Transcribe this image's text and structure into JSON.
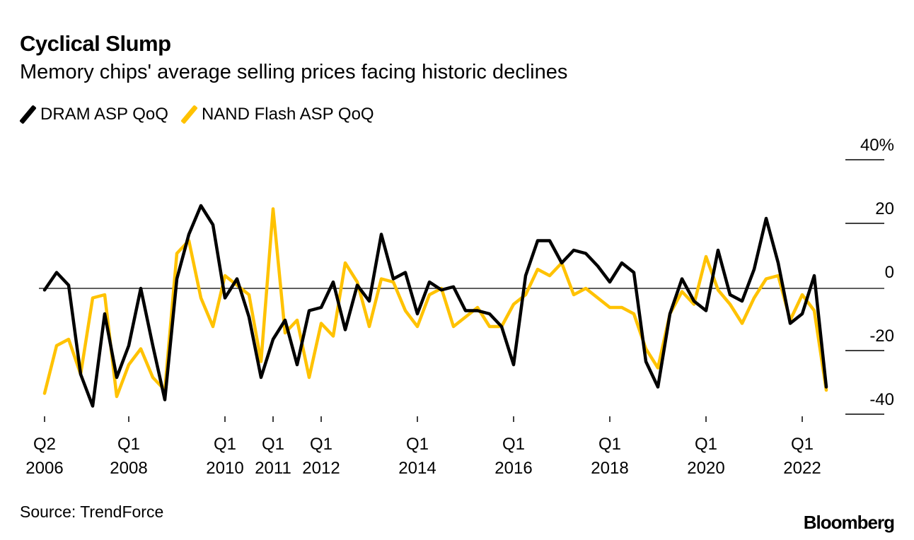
{
  "chart_data": {
    "type": "line",
    "title": "Cyclical Slump",
    "subtitle": "Memory chips' average selling prices facing historic declines",
    "xlabel": "",
    "ylabel": "",
    "ylim": [
      -40,
      40
    ],
    "yticks": [
      "40%",
      "20",
      "0",
      "-20",
      "-40"
    ],
    "ytick_values": [
      40,
      20,
      0,
      -20,
      -40
    ],
    "x_start": "Q2 2006",
    "x_end": "Q3 2022",
    "x_frequency": "quarterly",
    "xticks": [
      {
        "index": 0,
        "q": "Q2",
        "year": "2006"
      },
      {
        "index": 7,
        "q": "Q1",
        "year": "2008"
      },
      {
        "index": 15,
        "q": "Q1",
        "year": "2010"
      },
      {
        "index": 19,
        "q": "Q1",
        "year": "2011"
      },
      {
        "index": 23,
        "q": "Q1",
        "year": "2012"
      },
      {
        "index": 31,
        "q": "Q1",
        "year": "2014"
      },
      {
        "index": 39,
        "q": "Q1",
        "year": "2016"
      },
      {
        "index": 47,
        "q": "Q1",
        "year": "2018"
      },
      {
        "index": 55,
        "q": "Q1",
        "year": "2020"
      },
      {
        "index": 63,
        "q": "Q1",
        "year": "2022"
      }
    ],
    "legend_position": "top-left",
    "series": [
      {
        "name": "DRAM ASP QoQ",
        "color": "#000000",
        "values": [
          -0.5,
          5,
          1,
          -27,
          -37,
          -8,
          -28,
          -18,
          0,
          -18,
          -35,
          3,
          17,
          26,
          20,
          -3,
          3,
          -9,
          -28,
          -16,
          -10,
          -24,
          -7,
          -6,
          2,
          -13,
          1,
          -4,
          17,
          3,
          5,
          -8,
          2,
          -0.5,
          0.5,
          -7,
          -7,
          -8,
          -12,
          -24,
          4,
          15,
          15,
          8,
          12,
          11,
          7,
          2,
          8,
          5,
          -23,
          -31,
          -8,
          3,
          -4,
          -7,
          12,
          -2,
          -4,
          6,
          22,
          8,
          -11,
          -8,
          4,
          -31
        ]
      },
      {
        "name": "NAND Flash ASP QoQ",
        "color": "#FFC200",
        "values": [
          -33,
          -18,
          -16,
          -27,
          -3,
          -2,
          -34,
          -24,
          -19,
          -28,
          -32,
          11,
          15,
          -3,
          -12,
          4,
          1,
          -2,
          -23,
          25,
          -14,
          -10,
          -28,
          -11,
          -15,
          8,
          2,
          -12,
          3,
          2,
          -7,
          -12,
          -2,
          0,
          -12,
          -9,
          -6,
          -12,
          -12,
          -5,
          -2,
          6,
          4,
          8,
          -2,
          0,
          -3,
          -6,
          -6,
          -8,
          -19,
          -25,
          -8,
          -1,
          -5,
          10,
          -0.5,
          -5,
          -11,
          -3,
          3,
          4,
          -10,
          -2,
          -7,
          -32
        ]
      }
    ]
  },
  "source": "Source: TrendForce",
  "logo": "Bloomberg"
}
